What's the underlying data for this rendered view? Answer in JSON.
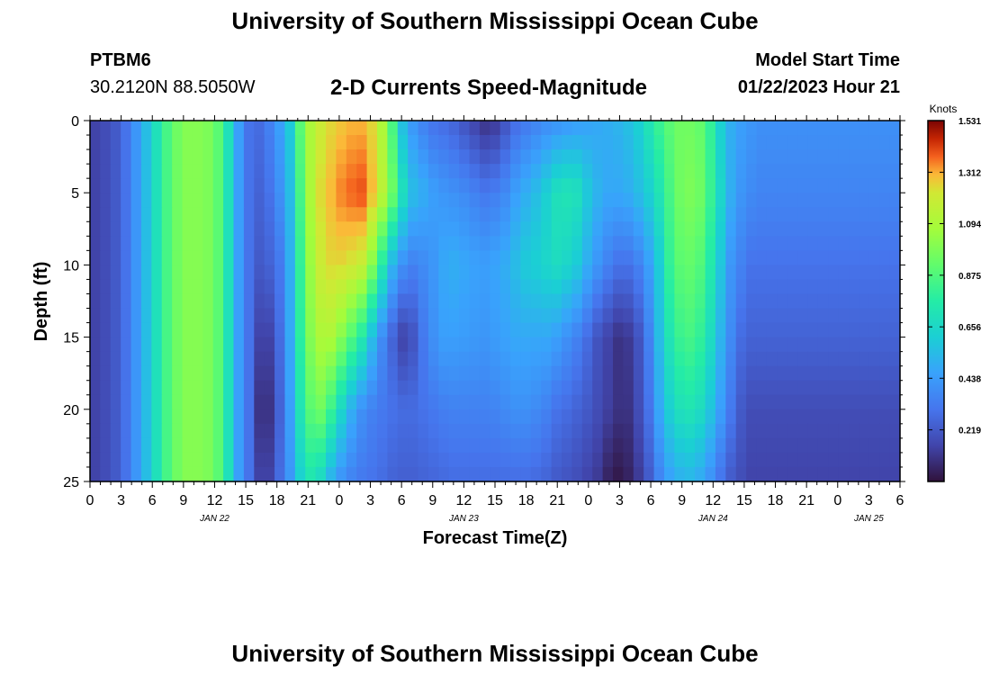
{
  "header": {
    "title": "University of Southern Mississippi Ocean Cube",
    "station_id": "PTBM6",
    "coords": "30.2120N  88.5050W",
    "subtitle": "2-D Currents Speed-Magnitude",
    "model_label": "Model Start Time",
    "model_time": "01/22/2023 Hour 21"
  },
  "footer": {
    "title": "University of Southern Mississippi Ocean Cube"
  },
  "chart_data": {
    "type": "heatmap",
    "title": "2-D Currents Speed-Magnitude",
    "xlabel": "Forecast Time(Z)",
    "ylabel": "Depth (ft)",
    "x_start_hour": 0,
    "x_end_hour": 78,
    "x_ticks": [
      {
        "h": 0,
        "label": "0"
      },
      {
        "h": 3,
        "label": "3"
      },
      {
        "h": 6,
        "label": "6"
      },
      {
        "h": 9,
        "label": "9"
      },
      {
        "h": 12,
        "label": "12"
      },
      {
        "h": 15,
        "label": "15"
      },
      {
        "h": 18,
        "label": "18"
      },
      {
        "h": 21,
        "label": "21"
      },
      {
        "h": 24,
        "label": "0"
      },
      {
        "h": 27,
        "label": "3"
      },
      {
        "h": 30,
        "label": "6"
      },
      {
        "h": 33,
        "label": "9"
      },
      {
        "h": 36,
        "label": "12"
      },
      {
        "h": 39,
        "label": "15"
      },
      {
        "h": 42,
        "label": "18"
      },
      {
        "h": 45,
        "label": "21"
      },
      {
        "h": 48,
        "label": "0"
      },
      {
        "h": 51,
        "label": "3"
      },
      {
        "h": 54,
        "label": "6"
      },
      {
        "h": 57,
        "label": "9"
      },
      {
        "h": 60,
        "label": "12"
      },
      {
        "h": 63,
        "label": "15"
      },
      {
        "h": 66,
        "label": "18"
      },
      {
        "h": 69,
        "label": "21"
      },
      {
        "h": 72,
        "label": "0"
      },
      {
        "h": 75,
        "label": "3"
      },
      {
        "h": 78,
        "label": "6"
      }
    ],
    "date_labels": [
      {
        "h": 12,
        "label": "JAN 22"
      },
      {
        "h": 36,
        "label": "JAN 23"
      },
      {
        "h": 60,
        "label": "JAN 24"
      },
      {
        "h": 75,
        "label": "JAN 25"
      }
    ],
    "y_range": [
      0,
      25
    ],
    "y_ticks": [
      0,
      5,
      10,
      15,
      20,
      25
    ],
    "colorbar": {
      "unit": "Knots",
      "min": 0,
      "max": 1.531,
      "ticks": [
        "1.531",
        "1.312",
        "1.094",
        "0.875",
        "0.656",
        "0.438",
        "0.219"
      ]
    },
    "depths_ft": [
      0,
      5,
      10,
      15,
      20,
      25
    ],
    "hours": [
      0,
      1,
      2,
      3,
      4,
      5,
      6,
      7,
      8,
      9,
      10,
      11,
      12,
      13,
      14,
      15,
      16,
      17,
      18,
      19,
      20,
      21,
      22,
      23,
      24,
      25,
      26,
      27,
      28,
      29,
      30,
      31,
      32,
      33,
      34,
      35,
      36,
      37,
      38,
      39,
      40,
      41,
      42,
      43,
      44,
      45,
      46,
      47,
      48,
      49,
      50,
      51,
      52,
      53,
      54,
      55,
      56,
      57,
      58,
      59,
      60,
      61,
      62,
      63,
      64,
      65,
      66,
      67,
      68,
      69,
      70,
      71,
      72,
      73,
      74,
      75,
      76,
      77,
      78
    ],
    "speed_knots": [
      [
        0.15,
        0.18,
        0.22,
        0.3,
        0.42,
        0.55,
        0.7,
        0.85,
        0.95,
        1.0,
        1.0,
        0.98,
        0.9,
        0.7,
        0.45,
        0.3,
        0.28,
        0.35,
        0.45,
        0.6,
        0.9,
        1.1,
        1.2,
        1.25,
        1.28,
        1.3,
        1.3,
        1.25,
        1.1,
        0.85,
        0.55,
        0.42,
        0.35,
        0.3,
        0.28,
        0.25,
        0.2,
        0.15,
        0.1,
        0.12,
        0.2,
        0.28,
        0.32,
        0.35,
        0.38,
        0.4,
        0.42,
        0.44,
        0.46,
        0.48,
        0.5,
        0.52,
        0.56,
        0.62,
        0.72,
        0.82,
        0.9,
        0.95,
        0.95,
        0.92,
        0.8,
        0.62,
        0.5,
        0.45,
        0.42,
        0.4,
        0.4,
        0.4,
        0.4,
        0.4,
        0.4,
        0.4,
        0.4,
        0.4,
        0.4,
        0.4,
        0.4,
        0.4,
        0.4
      ],
      [
        0.15,
        0.18,
        0.22,
        0.3,
        0.42,
        0.55,
        0.7,
        0.85,
        0.95,
        1.0,
        1.0,
        0.98,
        0.9,
        0.7,
        0.45,
        0.3,
        0.25,
        0.3,
        0.4,
        0.55,
        0.85,
        1.1,
        1.25,
        1.3,
        1.35,
        1.38,
        1.4,
        1.3,
        1.15,
        0.95,
        0.7,
        0.55,
        0.5,
        0.45,
        0.42,
        0.4,
        0.38,
        0.35,
        0.32,
        0.34,
        0.38,
        0.45,
        0.5,
        0.55,
        0.62,
        0.7,
        0.72,
        0.7,
        0.6,
        0.52,
        0.48,
        0.48,
        0.5,
        0.55,
        0.62,
        0.72,
        0.85,
        0.95,
        0.98,
        0.95,
        0.82,
        0.65,
        0.5,
        0.42,
        0.38,
        0.36,
        0.36,
        0.36,
        0.36,
        0.36,
        0.36,
        0.36,
        0.36,
        0.36,
        0.36,
        0.36,
        0.36,
        0.36,
        0.36
      ],
      [
        0.15,
        0.18,
        0.22,
        0.3,
        0.42,
        0.55,
        0.7,
        0.85,
        0.95,
        1.0,
        1.0,
        0.98,
        0.9,
        0.7,
        0.45,
        0.3,
        0.22,
        0.25,
        0.32,
        0.5,
        0.8,
        1.05,
        1.2,
        1.25,
        1.25,
        1.22,
        1.18,
        1.0,
        0.75,
        0.52,
        0.4,
        0.35,
        0.38,
        0.42,
        0.48,
        0.5,
        0.48,
        0.46,
        0.45,
        0.47,
        0.5,
        0.55,
        0.6,
        0.62,
        0.65,
        0.68,
        0.65,
        0.6,
        0.5,
        0.42,
        0.35,
        0.3,
        0.3,
        0.35,
        0.45,
        0.6,
        0.8,
        0.9,
        0.92,
        0.88,
        0.75,
        0.58,
        0.42,
        0.35,
        0.3,
        0.3,
        0.3,
        0.3,
        0.3,
        0.3,
        0.3,
        0.3,
        0.3,
        0.3,
        0.3,
        0.3,
        0.3,
        0.3,
        0.3
      ],
      [
        0.15,
        0.18,
        0.22,
        0.3,
        0.42,
        0.55,
        0.7,
        0.85,
        0.95,
        1.0,
        1.0,
        0.98,
        0.9,
        0.7,
        0.45,
        0.3,
        0.15,
        0.15,
        0.28,
        0.48,
        0.78,
        1.0,
        1.1,
        1.1,
        1.0,
        0.88,
        0.75,
        0.55,
        0.38,
        0.25,
        0.15,
        0.2,
        0.32,
        0.4,
        0.45,
        0.45,
        0.44,
        0.43,
        0.42,
        0.44,
        0.46,
        0.48,
        0.48,
        0.48,
        0.48,
        0.45,
        0.4,
        0.35,
        0.28,
        0.2,
        0.15,
        0.1,
        0.12,
        0.2,
        0.35,
        0.55,
        0.72,
        0.82,
        0.85,
        0.8,
        0.68,
        0.52,
        0.38,
        0.28,
        0.25,
        0.25,
        0.25,
        0.25,
        0.25,
        0.25,
        0.25,
        0.25,
        0.25,
        0.25,
        0.25,
        0.25,
        0.25,
        0.25,
        0.25
      ],
      [
        0.15,
        0.18,
        0.22,
        0.3,
        0.42,
        0.55,
        0.7,
        0.85,
        0.95,
        1.0,
        1.0,
        0.98,
        0.9,
        0.7,
        0.45,
        0.3,
        0.1,
        0.1,
        0.25,
        0.45,
        0.72,
        0.9,
        0.95,
        0.82,
        0.65,
        0.5,
        0.4,
        0.35,
        0.32,
        0.3,
        0.28,
        0.28,
        0.3,
        0.32,
        0.34,
        0.35,
        0.35,
        0.35,
        0.35,
        0.36,
        0.38,
        0.4,
        0.4,
        0.38,
        0.35,
        0.3,
        0.28,
        0.25,
        0.22,
        0.18,
        0.14,
        0.1,
        0.1,
        0.18,
        0.3,
        0.48,
        0.62,
        0.7,
        0.72,
        0.68,
        0.58,
        0.45,
        0.32,
        0.22,
        0.18,
        0.18,
        0.18,
        0.18,
        0.18,
        0.18,
        0.18,
        0.18,
        0.18,
        0.18,
        0.18,
        0.18,
        0.18,
        0.18,
        0.18
      ],
      [
        0.15,
        0.18,
        0.22,
        0.3,
        0.42,
        0.55,
        0.7,
        0.85,
        0.95,
        1.0,
        1.0,
        0.98,
        0.9,
        0.7,
        0.45,
        0.3,
        0.15,
        0.15,
        0.28,
        0.42,
        0.62,
        0.72,
        0.65,
        0.5,
        0.4,
        0.35,
        0.32,
        0.3,
        0.28,
        0.25,
        0.24,
        0.24,
        0.25,
        0.26,
        0.27,
        0.28,
        0.28,
        0.28,
        0.28,
        0.28,
        0.28,
        0.28,
        0.28,
        0.27,
        0.25,
        0.22,
        0.2,
        0.18,
        0.15,
        0.12,
        0.05,
        0.02,
        0.05,
        0.12,
        0.22,
        0.35,
        0.45,
        0.5,
        0.52,
        0.48,
        0.4,
        0.3,
        0.22,
        0.18,
        0.15,
        0.15,
        0.15,
        0.15,
        0.15,
        0.15,
        0.15,
        0.15,
        0.15,
        0.15,
        0.15,
        0.15,
        0.15,
        0.15,
        0.15
      ]
    ]
  }
}
